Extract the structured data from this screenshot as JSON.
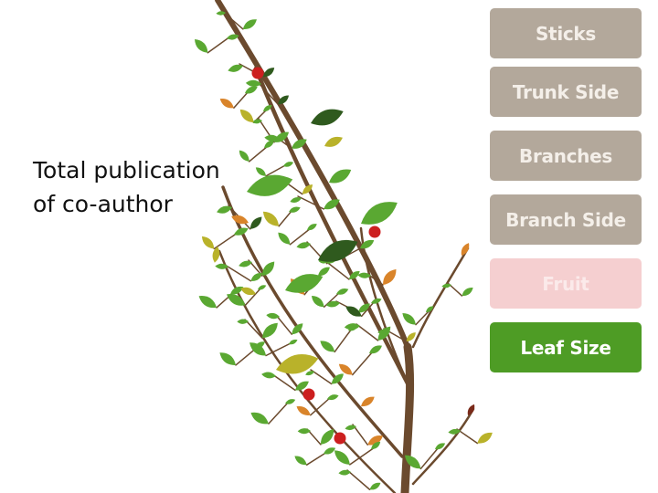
{
  "caption": {
    "line1": "Total publication",
    "line2": "of co-author"
  },
  "menu": {
    "items": [
      {
        "label": "Sticks",
        "state": "dimmed"
      },
      {
        "label": "Trunk Side",
        "state": "dimmed"
      },
      {
        "label": "Branches",
        "state": "dimmed"
      },
      {
        "label": "Branch Side",
        "state": "dimmed"
      },
      {
        "label": "Fruit",
        "state": "disabled"
      },
      {
        "label": "Leaf Size",
        "state": "active"
      }
    ]
  },
  "colors": {
    "trunk": "#6b4a2e",
    "leaf_green": "#5aa832",
    "leaf_dark": "#2f5a1e",
    "leaf_olive": "#b9b22a",
    "leaf_orange": "#d9842a",
    "fruit_red": "#cc1f1f",
    "button_tan": "#b3a89b",
    "button_pink": "#f5cfd0",
    "button_green": "#4e9c25"
  }
}
